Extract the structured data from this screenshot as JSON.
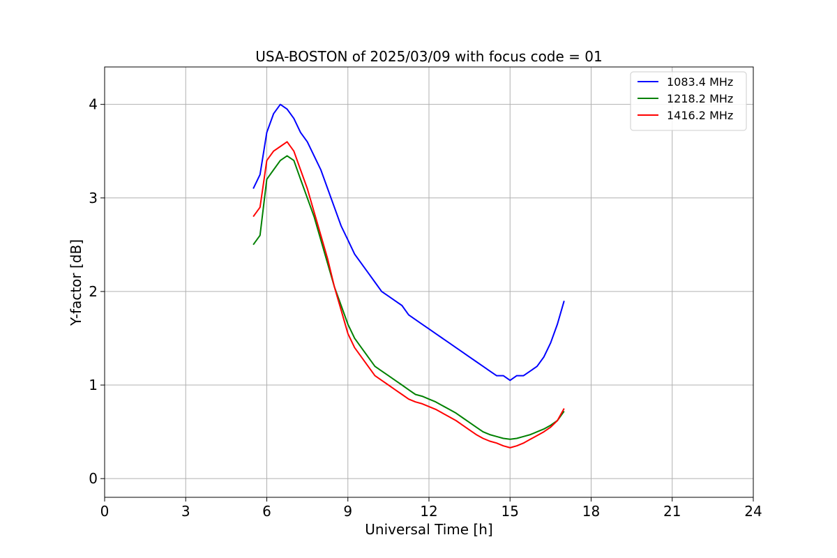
{
  "chart_data": {
    "type": "line",
    "title": "USA-BOSTON of 2025/03/09 with focus code = 01",
    "xlabel": "Universal Time [h]",
    "ylabel": "Y-factor [dB]",
    "xlim": [
      0,
      24
    ],
    "ylim": [
      -0.2,
      4.4
    ],
    "xticks": [
      0,
      3,
      6,
      9,
      12,
      15,
      18,
      21,
      24
    ],
    "yticks": [
      0,
      1,
      2,
      3,
      4
    ],
    "grid": true,
    "legend_position": "top-right",
    "x": [
      5.5,
      5.75,
      6.0,
      6.25,
      6.5,
      6.75,
      7.0,
      7.25,
      7.5,
      7.75,
      8.0,
      8.25,
      8.5,
      8.75,
      9.0,
      9.25,
      9.5,
      9.75,
      10.0,
      10.25,
      10.5,
      10.75,
      11.0,
      11.25,
      11.5,
      11.75,
      12.0,
      12.25,
      12.5,
      12.75,
      13.0,
      13.25,
      13.5,
      13.75,
      14.0,
      14.25,
      14.5,
      14.75,
      15.0,
      15.25,
      15.5,
      15.75,
      16.0,
      16.25,
      16.5,
      16.75,
      17.0
    ],
    "series": [
      {
        "name": "1083.4 MHz",
        "color": "#0000ff",
        "values": [
          3.1,
          3.25,
          3.7,
          3.9,
          4.0,
          3.95,
          3.85,
          3.7,
          3.6,
          3.45,
          3.3,
          3.1,
          2.9,
          2.7,
          2.55,
          2.4,
          2.3,
          2.2,
          2.1,
          2.0,
          1.95,
          1.9,
          1.85,
          1.75,
          1.7,
          1.65,
          1.6,
          1.55,
          1.5,
          1.45,
          1.4,
          1.35,
          1.3,
          1.25,
          1.2,
          1.15,
          1.1,
          1.1,
          1.05,
          1.1,
          1.1,
          1.15,
          1.2,
          1.3,
          1.45,
          1.65,
          1.9
        ]
      },
      {
        "name": "1218.2 MHz",
        "color": "#008000",
        "values": [
          2.5,
          2.6,
          3.2,
          3.3,
          3.4,
          3.45,
          3.4,
          3.2,
          3.0,
          2.8,
          2.55,
          2.3,
          2.05,
          1.85,
          1.65,
          1.5,
          1.4,
          1.3,
          1.2,
          1.15,
          1.1,
          1.05,
          1.0,
          0.95,
          0.9,
          0.88,
          0.85,
          0.82,
          0.78,
          0.74,
          0.7,
          0.65,
          0.6,
          0.55,
          0.5,
          0.47,
          0.45,
          0.43,
          0.42,
          0.43,
          0.45,
          0.47,
          0.5,
          0.53,
          0.57,
          0.62,
          0.72
        ]
      },
      {
        "name": "1416.2 MHz",
        "color": "#ff0000",
        "values": [
          2.8,
          2.9,
          3.4,
          3.5,
          3.55,
          3.6,
          3.5,
          3.3,
          3.1,
          2.85,
          2.6,
          2.35,
          2.05,
          1.8,
          1.55,
          1.4,
          1.3,
          1.2,
          1.1,
          1.05,
          1.0,
          0.95,
          0.9,
          0.85,
          0.82,
          0.8,
          0.77,
          0.74,
          0.7,
          0.66,
          0.62,
          0.57,
          0.52,
          0.47,
          0.43,
          0.4,
          0.38,
          0.35,
          0.33,
          0.35,
          0.38,
          0.42,
          0.46,
          0.5,
          0.55,
          0.62,
          0.75
        ]
      }
    ]
  }
}
